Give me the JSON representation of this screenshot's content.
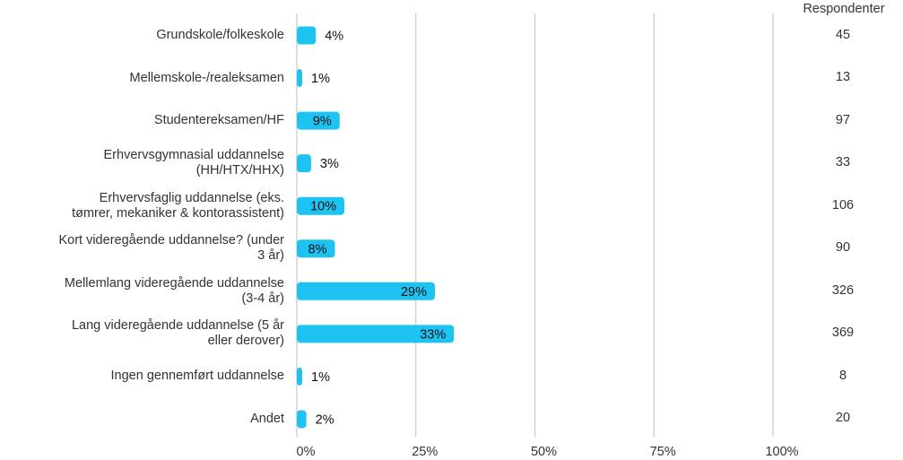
{
  "chart_data": {
    "type": "bar",
    "orientation": "horizontal",
    "categories": [
      "Grundskole/folkeskole",
      "Mellemskole-/realeksamen",
      "Studentereksamen/HF",
      "Erhvervsgymnasial uddannelse (HH/HTX/HHX)",
      "Erhvervsfaglig uddannelse (eks. tømrer, mekaniker & kontorassistent)",
      "Kort videregående uddannelse? (under 3 år)",
      "Mellemlang videregående uddannelse (3-4 år)",
      "Lang videregående uddannelse (5 år eller derover)",
      "Ingen gennemført uddannelse",
      "Andet"
    ],
    "category_lines": [
      [
        "Grundskole/folkeskole"
      ],
      [
        "Mellemskole-/realeksamen"
      ],
      [
        "Studentereksamen/HF"
      ],
      [
        "Erhvervsgymnasial uddannelse",
        "(HH/HTX/HHX)"
      ],
      [
        "Erhvervsfaglig uddannelse (eks.",
        "tømrer, mekaniker & kontorassistent)"
      ],
      [
        "Kort videregående uddannelse? (under",
        "3 år)"
      ],
      [
        "Mellemlang videregående uddannelse",
        "(3-4 år)"
      ],
      [
        "Lang videregående uddannelse (5 år",
        "eller derover)"
      ],
      [
        "Ingen gennemført uddannelse"
      ],
      [
        "Andet"
      ]
    ],
    "values": [
      4,
      1,
      9,
      3,
      10,
      8,
      29,
      33,
      1,
      2
    ],
    "value_labels": [
      "4%",
      "1%",
      "9%",
      "3%",
      "10%",
      "8%",
      "29%",
      "33%",
      "1%",
      "2%"
    ],
    "respondents_header": "Respondenter",
    "respondents": [
      "45",
      "13",
      "97",
      "33",
      "106",
      "90",
      "326",
      "369",
      "8",
      "20"
    ],
    "xlim": [
      0,
      100
    ],
    "x_ticks": [
      0,
      25,
      50,
      75,
      100
    ],
    "x_tick_labels": [
      "0%",
      "25%",
      "50%",
      "75%",
      "100%"
    ],
    "grid": true,
    "bar_color": "#1fc3f2",
    "grid_color": "#c8c8c8"
  }
}
